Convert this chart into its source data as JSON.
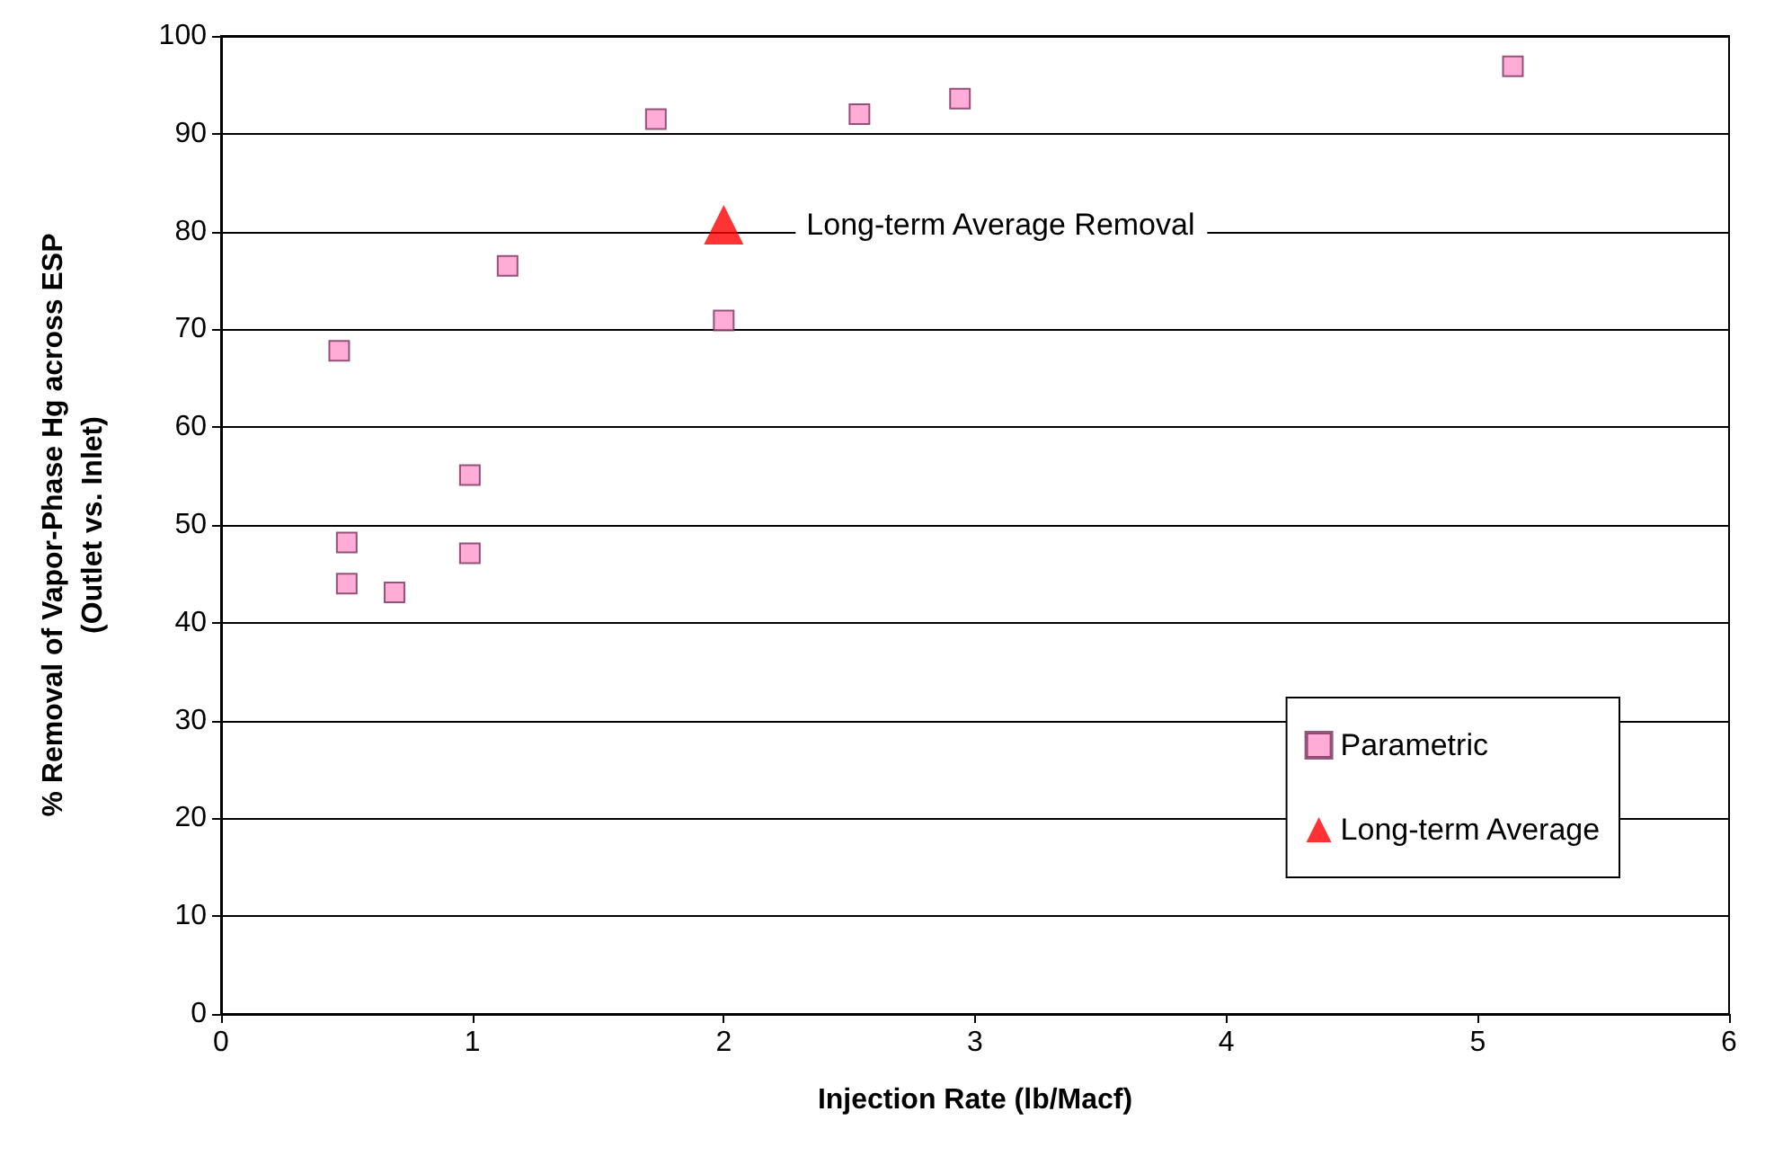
{
  "chart_data": {
    "type": "scatter",
    "xlabel": "Injection Rate (lb/Macf)",
    "ylabel": "% Removal of Vapor-Phase Hg across ESP\n(Outlet vs. Inlet)",
    "xlim": [
      0,
      6
    ],
    "xticks": [
      0,
      1,
      2,
      3,
      4,
      5,
      6
    ],
    "ylim": [
      0,
      100
    ],
    "yticks": [
      0,
      10,
      20,
      30,
      40,
      50,
      60,
      70,
      80,
      90,
      100
    ],
    "grid": "y",
    "legend": "right",
    "series": [
      {
        "name": "Parametric",
        "color": "#ff99cc",
        "marker": "square",
        "x": [
          0.47,
          0.5,
          0.5,
          0.69,
          0.99,
          0.99,
          1.14,
          1.73,
          2.0,
          2.54,
          2.94,
          5.14
        ],
        "values": [
          67.8,
          48.2,
          44,
          43.1,
          55.1,
          47.1,
          76.5,
          91.5,
          70.9,
          92,
          93.6,
          96.9
        ]
      },
      {
        "name": "Long-term Average",
        "color": "#ff0000",
        "marker": "triangle",
        "x": [
          2.0
        ],
        "values": [
          80.7
        ]
      }
    ],
    "annotations": [
      {
        "text": "Long-term Average Removal",
        "x": 2.0,
        "y": 80.7
      }
    ]
  }
}
